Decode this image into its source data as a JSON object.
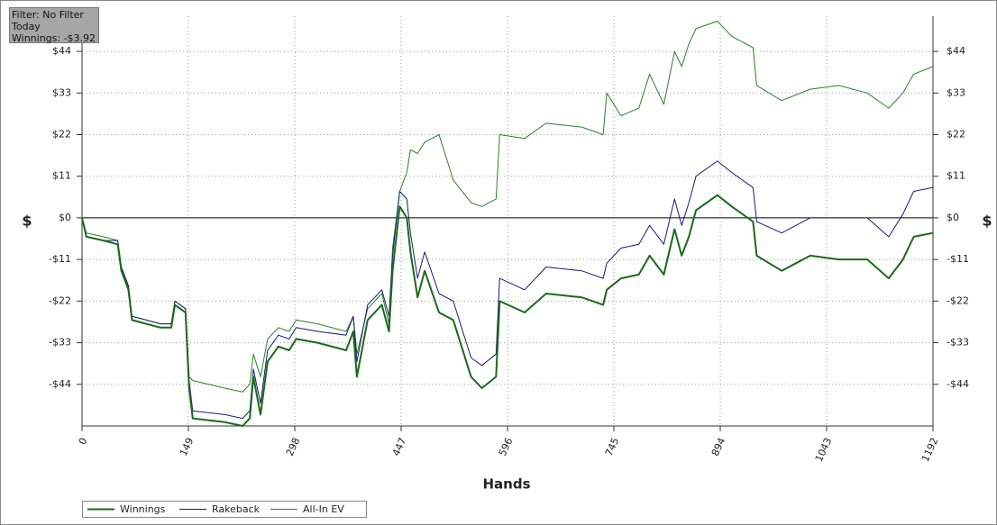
{
  "chart_data": {
    "type": "line",
    "info": [
      "Filter: No Filter",
      "Today",
      "Winnings: -$3.92"
    ],
    "x_label": "Hands",
    "y_label": "$",
    "x": [
      0,
      6,
      30,
      50,
      55,
      65,
      70,
      90,
      110,
      125,
      130,
      145,
      150,
      155,
      200,
      225,
      235,
      240,
      250,
      260,
      275,
      290,
      300,
      330,
      370,
      380,
      385,
      400,
      420,
      430,
      435,
      445,
      455,
      460,
      470,
      480,
      500,
      520,
      545,
      560,
      580,
      585,
      620,
      650,
      700,
      730,
      735,
      755,
      780,
      795,
      815,
      830,
      840,
      850,
      860,
      890,
      910,
      940,
      945,
      980,
      1020,
      1060,
      1100,
      1130,
      1150,
      1165,
      1192
    ],
    "series": [
      {
        "name": "Winnings",
        "color": "#1b6a1b",
        "width": 2,
        "values": [
          0,
          -5,
          -6,
          -7,
          -14,
          -19,
          -27,
          -28,
          -29,
          -29,
          -23,
          -25,
          -45,
          -53,
          -54,
          -55,
          -53,
          -42,
          -52,
          -38,
          -34,
          -35,
          -32,
          -33,
          -35,
          -30,
          -42,
          -27,
          -23,
          -30,
          -14,
          3,
          0,
          -9,
          -21,
          -14,
          -25,
          -27,
          -42,
          -45,
          -42,
          -22,
          -25,
          -20,
          -21,
          -23,
          -19,
          -16,
          -15,
          -10,
          -15,
          -3,
          -10,
          -5,
          2,
          6,
          3,
          -1,
          -10,
          -14,
          -10,
          -11,
          -11,
          -16,
          -11,
          -5,
          -4
        ]
      },
      {
        "name": "Rakeback",
        "color": "#1a1a7a",
        "width": 1,
        "values": [
          0,
          -5,
          -6,
          -6,
          -13,
          -18,
          -26,
          -27,
          -28,
          -28,
          -22,
          -24,
          -43,
          -51,
          -52,
          -53,
          -51,
          -40,
          -49,
          -35,
          -31,
          -32,
          -29,
          -30,
          -31,
          -26,
          -38,
          -23,
          -19,
          -26,
          -10,
          7,
          5,
          -4,
          -16,
          -9,
          -20,
          -22,
          -37,
          -39,
          -36,
          -16,
          -19,
          -13,
          -14,
          -16,
          -12,
          -8,
          -7,
          -2,
          -7,
          5,
          -2,
          4,
          11,
          15,
          12,
          8,
          -1,
          -4,
          0,
          0,
          0,
          -5,
          1,
          7,
          8
        ]
      },
      {
        "name": "All-In EV",
        "color": "#2f7d2f",
        "width": 1,
        "values": [
          0,
          -4,
          -5,
          -6,
          -13,
          -18,
          -26,
          -27,
          -28,
          -28,
          -22,
          -24,
          -42,
          -43,
          -45,
          -46,
          -44,
          -36,
          -42,
          -32,
          -29,
          -30,
          -27,
          -28,
          -30,
          -26,
          -36,
          -24,
          -20,
          -28,
          -8,
          7,
          12,
          18,
          17,
          20,
          22,
          10,
          4,
          3,
          5,
          22,
          21,
          25,
          24,
          22,
          33,
          27,
          29,
          38,
          30,
          44,
          40,
          46,
          50,
          52,
          48,
          45,
          35,
          31,
          34,
          35,
          33,
          29,
          33,
          38,
          40
        ]
      }
    ],
    "xlim": [
      0,
      1192
    ],
    "xticks": [
      0,
      149,
      298,
      447,
      596,
      745,
      894,
      1043,
      1192
    ],
    "ylim": [
      -55,
      53.3
    ],
    "yticks": [
      {
        "value": -44,
        "label": "-$44"
      },
      {
        "value": -33,
        "label": "-$33"
      },
      {
        "value": -22,
        "label": "-$22"
      },
      {
        "value": -11,
        "label": "-$11"
      },
      {
        "value": 0,
        "label": "$0"
      },
      {
        "value": 11,
        "label": "$11"
      },
      {
        "value": 22,
        "label": "$22"
      },
      {
        "value": 33,
        "label": "$33"
      },
      {
        "value": 44,
        "label": "$44"
      }
    ],
    "grid": true
  }
}
